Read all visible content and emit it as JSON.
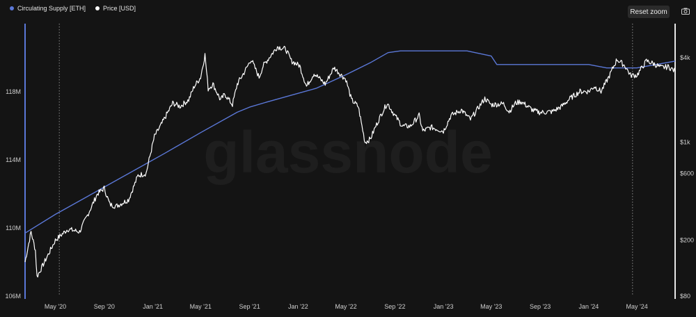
{
  "legend": {
    "supply_label": "Circulating Supply [ETH]",
    "price_label": "Price [USD]"
  },
  "toolbar": {
    "reset_zoom_label": "Reset zoom",
    "camera_icon": "camera-icon"
  },
  "watermark": "glassnode",
  "colors": {
    "background": "#141414",
    "supply": "#5b78d8",
    "price": "#ffffff",
    "grid_marker": "#8a8a8a"
  },
  "chart_data": {
    "type": "line",
    "x_ticks": [
      "May '20",
      "Sep '20",
      "Jan '21",
      "May '21",
      "Sep '21",
      "Jan '22",
      "May '22",
      "Sep '22",
      "Jan '23",
      "May '23",
      "Sep '23",
      "Jan '24",
      "May '24"
    ],
    "left_axis": {
      "ticks": [
        "106M",
        "110M",
        "114M",
        "118M"
      ],
      "values": [
        106,
        110,
        114,
        118
      ],
      "range": [
        106,
        122
      ]
    },
    "right_axis": {
      "ticks": [
        "$80",
        "$200",
        "$600",
        "$1k",
        "$4k"
      ],
      "values": [
        80,
        200,
        600,
        1000,
        4000
      ],
      "scale": "log",
      "range": [
        80,
        7000
      ]
    },
    "x_range": [
      "2020-02-15",
      "2024-08-05"
    ],
    "reference_lines": [
      "2020-05-11",
      "2024-04-20"
    ],
    "series": [
      {
        "name": "Circulating Supply [ETH]",
        "axis": "left",
        "points": [
          [
            "2020-02-15",
            109.7
          ],
          [
            "2020-05-01",
            110.8
          ],
          [
            "2020-08-01",
            112.0
          ],
          [
            "2020-11-01",
            113.2
          ],
          [
            "2021-02-01",
            114.4
          ],
          [
            "2021-05-01",
            115.6
          ],
          [
            "2021-08-01",
            116.8
          ],
          [
            "2021-09-01",
            117.1
          ],
          [
            "2021-10-15",
            117.4
          ],
          [
            "2021-12-15",
            117.8
          ],
          [
            "2022-02-15",
            118.2
          ],
          [
            "2022-05-01",
            119.0
          ],
          [
            "2022-07-01",
            119.7
          ],
          [
            "2022-08-15",
            120.3
          ],
          [
            "2022-09-15",
            120.4
          ],
          [
            "2022-12-15",
            120.4
          ],
          [
            "2023-03-01",
            120.4
          ],
          [
            "2023-05-01",
            120.1
          ],
          [
            "2023-05-15",
            119.6
          ],
          [
            "2023-08-01",
            119.6
          ],
          [
            "2023-11-01",
            119.6
          ],
          [
            "2024-01-01",
            119.6
          ],
          [
            "2024-02-15",
            119.4
          ],
          [
            "2024-05-01",
            119.4
          ],
          [
            "2024-08-05",
            119.8
          ]
        ]
      },
      {
        "name": "Price [USD]",
        "axis": "right",
        "points": [
          [
            "2020-02-15",
            140
          ],
          [
            "2020-03-01",
            230
          ],
          [
            "2020-03-12",
            170
          ],
          [
            "2020-03-16",
            110
          ],
          [
            "2020-04-01",
            135
          ],
          [
            "2020-05-01",
            200
          ],
          [
            "2020-06-01",
            240
          ],
          [
            "2020-07-01",
            230
          ],
          [
            "2020-07-25",
            320
          ],
          [
            "2020-08-15",
            430
          ],
          [
            "2020-09-01",
            470
          ],
          [
            "2020-09-15",
            360
          ],
          [
            "2020-10-01",
            350
          ],
          [
            "2020-11-01",
            390
          ],
          [
            "2020-11-25",
            580
          ],
          [
            "2020-12-15",
            600
          ],
          [
            "2021-01-05",
            1100
          ],
          [
            "2021-01-20",
            1300
          ],
          [
            "2021-02-20",
            1900
          ],
          [
            "2021-03-10",
            1800
          ],
          [
            "2021-04-01",
            2000
          ],
          [
            "2021-04-15",
            2500
          ],
          [
            "2021-05-01",
            2900
          ],
          [
            "2021-05-12",
            4200
          ],
          [
            "2021-05-20",
            2400
          ],
          [
            "2021-06-01",
            2600
          ],
          [
            "2021-06-20",
            2000
          ],
          [
            "2021-07-01",
            2200
          ],
          [
            "2021-07-20",
            1850
          ],
          [
            "2021-08-01",
            2600
          ],
          [
            "2021-08-20",
            3200
          ],
          [
            "2021-09-05",
            3900
          ],
          [
            "2021-09-25",
            2900
          ],
          [
            "2021-10-05",
            3500
          ],
          [
            "2021-10-20",
            4000
          ],
          [
            "2021-11-10",
            4800
          ],
          [
            "2021-12-01",
            4600
          ],
          [
            "2021-12-15",
            3800
          ],
          [
            "2022-01-05",
            3500
          ],
          [
            "2022-01-22",
            2500
          ],
          [
            "2022-02-10",
            3100
          ],
          [
            "2022-03-10",
            2600
          ],
          [
            "2022-04-01",
            3400
          ],
          [
            "2022-04-20",
            3000
          ],
          [
            "2022-05-01",
            2800
          ],
          [
            "2022-05-15",
            2000
          ],
          [
            "2022-06-01",
            1800
          ],
          [
            "2022-06-18",
            1000
          ],
          [
            "2022-07-01",
            1050
          ],
          [
            "2022-07-15",
            1300
          ],
          [
            "2022-08-01",
            1650
          ],
          [
            "2022-08-13",
            1900
          ],
          [
            "2022-09-01",
            1550
          ],
          [
            "2022-09-20",
            1300
          ],
          [
            "2022-10-10",
            1300
          ],
          [
            "2022-11-01",
            1550
          ],
          [
            "2022-11-10",
            1200
          ],
          [
            "2022-12-01",
            1280
          ],
          [
            "2023-01-01",
            1200
          ],
          [
            "2023-01-20",
            1550
          ],
          [
            "2023-02-15",
            1700
          ],
          [
            "2023-03-10",
            1450
          ],
          [
            "2023-04-01",
            1800
          ],
          [
            "2023-04-15",
            2050
          ],
          [
            "2023-05-01",
            1850
          ],
          [
            "2023-06-01",
            1880
          ],
          [
            "2023-06-15",
            1650
          ],
          [
            "2023-07-01",
            1900
          ],
          [
            "2023-07-15",
            1950
          ],
          [
            "2023-08-15",
            1680
          ],
          [
            "2023-09-01",
            1630
          ],
          [
            "2023-10-01",
            1650
          ],
          [
            "2023-10-25",
            1800
          ],
          [
            "2023-11-15",
            2050
          ],
          [
            "2023-12-10",
            2300
          ],
          [
            "2024-01-01",
            2300
          ],
          [
            "2024-01-15",
            2500
          ],
          [
            "2024-02-01",
            2300
          ],
          [
            "2024-02-20",
            2900
          ],
          [
            "2024-03-12",
            3900
          ],
          [
            "2024-04-01",
            3500
          ],
          [
            "2024-04-15",
            3000
          ],
          [
            "2024-05-01",
            3000
          ],
          [
            "2024-05-25",
            3800
          ],
          [
            "2024-06-10",
            3650
          ],
          [
            "2024-07-01",
            3400
          ],
          [
            "2024-07-20",
            3450
          ],
          [
            "2024-08-05",
            3200
          ]
        ]
      }
    ]
  }
}
